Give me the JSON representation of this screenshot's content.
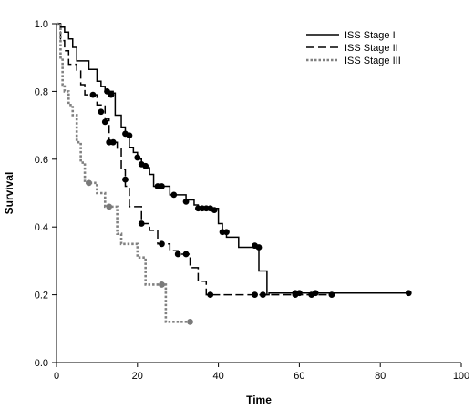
{
  "chart_data": {
    "type": "line",
    "step": true,
    "xlabel": "Time",
    "ylabel": "Survival",
    "xlim": [
      0,
      100
    ],
    "ylim": [
      0,
      1
    ],
    "xticks": [
      0,
      20,
      40,
      60,
      80,
      100
    ],
    "yticks": [
      0.0,
      0.2,
      0.4,
      0.6,
      0.8,
      1.0
    ],
    "xtick_labels": [
      "0",
      "20",
      "40",
      "60",
      "80",
      "100"
    ],
    "ytick_labels": [
      "0.0",
      "0.2",
      "0.4",
      "0.6",
      "0.8",
      "1.0"
    ],
    "grid": false,
    "legend_position": "top-right",
    "series": [
      {
        "name": "ISS Stage I",
        "color": "#000000",
        "dash": "solid",
        "steps": [
          [
            0,
            1.0
          ],
          [
            1,
            0.99
          ],
          [
            2,
            0.975
          ],
          [
            3,
            0.955
          ],
          [
            4,
            0.93
          ],
          [
            5,
            0.89
          ],
          [
            8,
            0.865
          ],
          [
            10,
            0.83
          ],
          [
            11,
            0.815
          ],
          [
            12,
            0.8
          ],
          [
            14,
            0.795
          ],
          [
            14.5,
            0.73
          ],
          [
            16,
            0.695
          ],
          [
            17,
            0.675
          ],
          [
            18,
            0.635
          ],
          [
            19,
            0.62
          ],
          [
            20,
            0.6
          ],
          [
            21,
            0.585
          ],
          [
            22,
            0.575
          ],
          [
            23,
            0.555
          ],
          [
            24,
            0.52
          ],
          [
            28,
            0.495
          ],
          [
            32,
            0.48
          ],
          [
            34,
            0.465
          ],
          [
            35,
            0.455
          ],
          [
            40,
            0.41
          ],
          [
            41,
            0.385
          ],
          [
            42,
            0.37
          ],
          [
            45,
            0.34
          ],
          [
            49,
            0.34
          ],
          [
            50,
            0.27
          ],
          [
            52,
            0.2
          ],
          [
            52.5,
            0.205
          ],
          [
            87,
            0.205
          ]
        ],
        "censored": [
          [
            12.5,
            0.8
          ],
          [
            13.5,
            0.79
          ],
          [
            17,
            0.675
          ],
          [
            18,
            0.67
          ],
          [
            20,
            0.605
          ],
          [
            21,
            0.585
          ],
          [
            22,
            0.58
          ],
          [
            25,
            0.52
          ],
          [
            26,
            0.52
          ],
          [
            29,
            0.495
          ],
          [
            32,
            0.475
          ],
          [
            35,
            0.455
          ],
          [
            36,
            0.455
          ],
          [
            37,
            0.455
          ],
          [
            38,
            0.455
          ],
          [
            39,
            0.45
          ],
          [
            41,
            0.385
          ],
          [
            42,
            0.385
          ],
          [
            49,
            0.345
          ],
          [
            50,
            0.34
          ],
          [
            59,
            0.205
          ],
          [
            60,
            0.205
          ],
          [
            64,
            0.205
          ],
          [
            87,
            0.205
          ]
        ]
      },
      {
        "name": "ISS Stage II",
        "color": "#000000",
        "dash": "dashed",
        "steps": [
          [
            0,
            1.0
          ],
          [
            1,
            0.95
          ],
          [
            2,
            0.92
          ],
          [
            3,
            0.88
          ],
          [
            5,
            0.86
          ],
          [
            6,
            0.82
          ],
          [
            7,
            0.79
          ],
          [
            10,
            0.76
          ],
          [
            12,
            0.72
          ],
          [
            13,
            0.65
          ],
          [
            15,
            0.63
          ],
          [
            16,
            0.57
          ],
          [
            17,
            0.52
          ],
          [
            18,
            0.46
          ],
          [
            21,
            0.41
          ],
          [
            23,
            0.39
          ],
          [
            25,
            0.35
          ],
          [
            28,
            0.33
          ],
          [
            30,
            0.32
          ],
          [
            33,
            0.28
          ],
          [
            35,
            0.24
          ],
          [
            37,
            0.2
          ],
          [
            68,
            0.2
          ]
        ],
        "censored": [
          [
            9,
            0.79
          ],
          [
            11,
            0.74
          ],
          [
            12,
            0.71
          ],
          [
            13,
            0.65
          ],
          [
            14,
            0.65
          ],
          [
            17,
            0.54
          ],
          [
            21,
            0.41
          ],
          [
            26,
            0.35
          ],
          [
            30,
            0.32
          ],
          [
            32,
            0.32
          ],
          [
            38,
            0.2
          ],
          [
            49,
            0.2
          ],
          [
            51,
            0.2
          ],
          [
            59,
            0.2
          ],
          [
            63,
            0.2
          ],
          [
            68,
            0.2
          ]
        ]
      },
      {
        "name": "ISS Stage III",
        "color": "#808080",
        "dash": "dotted",
        "steps": [
          [
            0,
            1.0
          ],
          [
            1,
            0.9
          ],
          [
            1.5,
            0.82
          ],
          [
            2,
            0.8
          ],
          [
            3,
            0.76
          ],
          [
            4,
            0.73
          ],
          [
            5,
            0.65
          ],
          [
            6,
            0.59
          ],
          [
            7,
            0.53
          ],
          [
            8,
            0.53
          ],
          [
            10,
            0.5
          ],
          [
            12,
            0.46
          ],
          [
            13,
            0.46
          ],
          [
            15,
            0.38
          ],
          [
            16,
            0.35
          ],
          [
            20,
            0.31
          ],
          [
            22,
            0.23
          ],
          [
            25,
            0.23
          ],
          [
            27,
            0.12
          ],
          [
            33,
            0.12
          ]
        ],
        "censored": [
          [
            8,
            0.53
          ],
          [
            13,
            0.46
          ],
          [
            26,
            0.23
          ],
          [
            33,
            0.12
          ]
        ]
      }
    ]
  }
}
